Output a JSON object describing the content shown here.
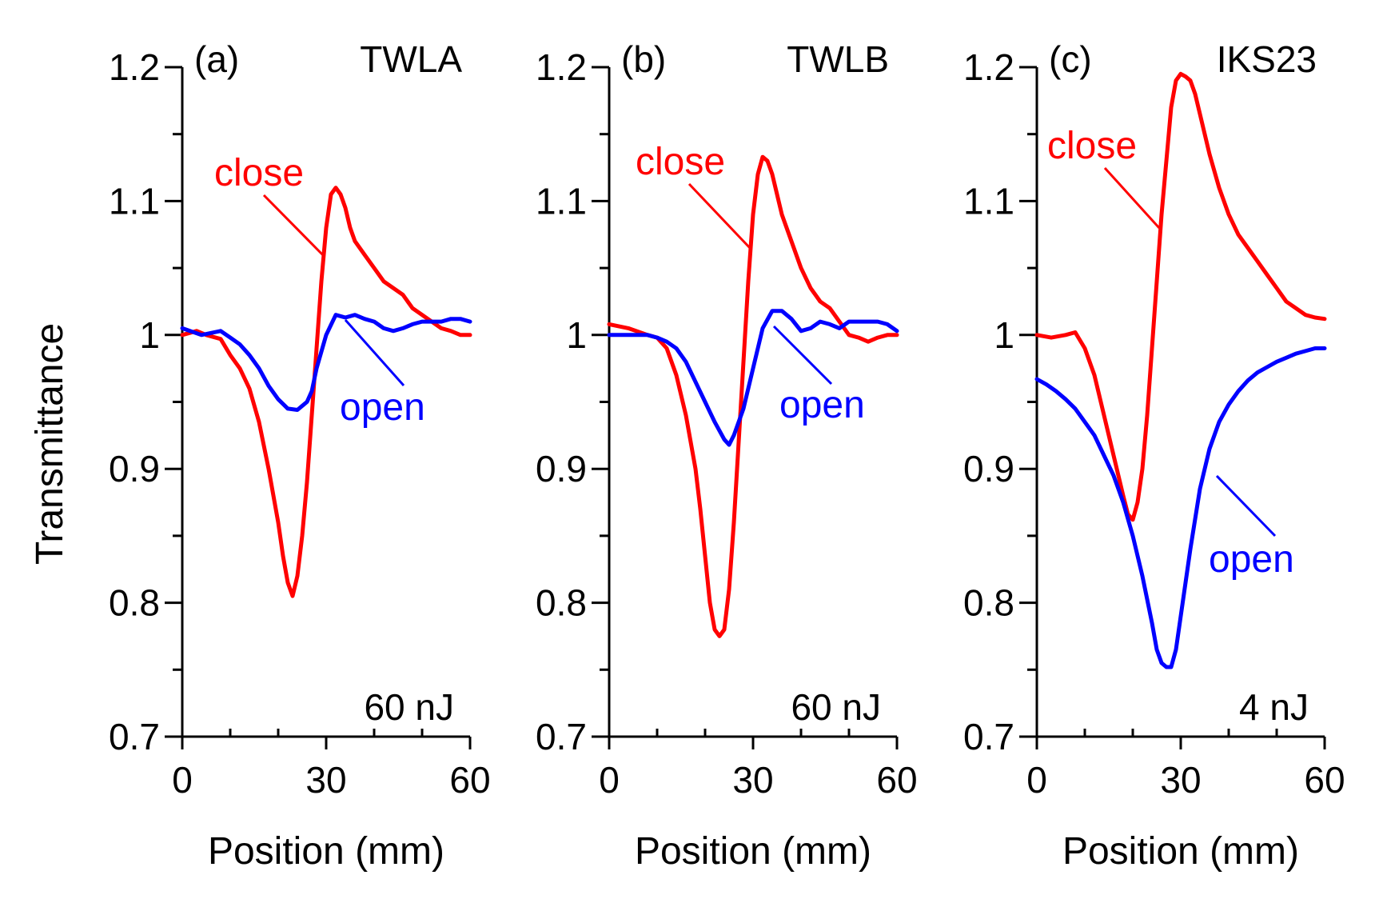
{
  "figure": {
    "ylabel": "Transmittance",
    "xlabel": "Position (mm)"
  },
  "chart_data": [
    {
      "type": "line",
      "panel": "(a)",
      "sample": "TWLA",
      "energy": "60 nJ",
      "xlabel": "Position (mm)",
      "ylabel": "Transmittance",
      "xlim": [
        0,
        60
      ],
      "ylim": [
        0.7,
        1.2
      ],
      "xticks": [
        0,
        30,
        60
      ],
      "yticks": [
        "0.7",
        "0.8",
        "0.9",
        "1",
        "1.1",
        "1.2"
      ],
      "series": [
        {
          "name": "close",
          "color": "#ff0000",
          "x": [
            0,
            3,
            5,
            8,
            10,
            12,
            14,
            16,
            18,
            20,
            21,
            22,
            23,
            24,
            25,
            26,
            27,
            28,
            29,
            30,
            31,
            32,
            33,
            34,
            35,
            36,
            38,
            40,
            42,
            44,
            46,
            48,
            50,
            52,
            54,
            56,
            58,
            60
          ],
          "y": [
            1.0,
            1.003,
            1.0,
            0.997,
            0.985,
            0.975,
            0.96,
            0.935,
            0.9,
            0.86,
            0.835,
            0.815,
            0.805,
            0.82,
            0.85,
            0.89,
            0.94,
            0.99,
            1.04,
            1.08,
            1.105,
            1.11,
            1.105,
            1.095,
            1.08,
            1.07,
            1.06,
            1.05,
            1.04,
            1.035,
            1.03,
            1.02,
            1.015,
            1.01,
            1.005,
            1.003,
            1.0,
            1.0
          ]
        },
        {
          "name": "open",
          "color": "#0000ff",
          "x": [
            0,
            4,
            8,
            10,
            12,
            14,
            16,
            18,
            20,
            22,
            24,
            26,
            27,
            28,
            30,
            32,
            34,
            36,
            38,
            40,
            42,
            44,
            46,
            48,
            50,
            52,
            54,
            56,
            58,
            60
          ],
          "y": [
            1.005,
            1.0,
            1.003,
            0.998,
            0.993,
            0.985,
            0.975,
            0.962,
            0.952,
            0.945,
            0.944,
            0.95,
            0.958,
            0.975,
            1.0,
            1.015,
            1.013,
            1.015,
            1.012,
            1.01,
            1.005,
            1.003,
            1.005,
            1.008,
            1.01,
            1.01,
            1.01,
            1.012,
            1.012,
            1.01
          ]
        }
      ]
    },
    {
      "type": "line",
      "panel": "(b)",
      "sample": "TWLB",
      "energy": "60 nJ",
      "xlabel": "Position (mm)",
      "ylabel": "Transmittance",
      "xlim": [
        0,
        60
      ],
      "ylim": [
        0.7,
        1.2
      ],
      "xticks": [
        0,
        30,
        60
      ],
      "yticks": [
        "0.7",
        "0.8",
        "0.9",
        "1",
        "1.1",
        "1.2"
      ],
      "series": [
        {
          "name": "close",
          "color": "#ff0000",
          "x": [
            0,
            4,
            8,
            10,
            12,
            14,
            16,
            18,
            19,
            20,
            21,
            22,
            23,
            24,
            25,
            26,
            27,
            28,
            29,
            30,
            31,
            32,
            33,
            34,
            35,
            36,
            38,
            40,
            42,
            44,
            46,
            48,
            50,
            52,
            54,
            56,
            58,
            60
          ],
          "y": [
            1.008,
            1.005,
            1.0,
            0.998,
            0.99,
            0.97,
            0.94,
            0.9,
            0.87,
            0.835,
            0.8,
            0.78,
            0.775,
            0.78,
            0.81,
            0.86,
            0.92,
            0.98,
            1.04,
            1.09,
            1.12,
            1.133,
            1.13,
            1.12,
            1.105,
            1.09,
            1.07,
            1.05,
            1.035,
            1.025,
            1.02,
            1.01,
            1.0,
            0.998,
            0.995,
            0.998,
            1.0,
            1.0
          ]
        },
        {
          "name": "open",
          "color": "#0000ff",
          "x": [
            0,
            4,
            8,
            10,
            12,
            14,
            16,
            18,
            20,
            22,
            24,
            25,
            26,
            28,
            30,
            32,
            34,
            36,
            38,
            40,
            42,
            44,
            46,
            48,
            50,
            52,
            54,
            56,
            58,
            60
          ],
          "y": [
            1.0,
            1.0,
            1.0,
            0.998,
            0.995,
            0.99,
            0.98,
            0.965,
            0.95,
            0.935,
            0.922,
            0.918,
            0.925,
            0.945,
            0.975,
            1.005,
            1.018,
            1.018,
            1.012,
            1.003,
            1.005,
            1.01,
            1.008,
            1.005,
            1.01,
            1.01,
            1.01,
            1.01,
            1.008,
            1.003
          ]
        }
      ]
    },
    {
      "type": "line",
      "panel": "(c)",
      "sample": "IKS23",
      "energy": "4 nJ",
      "xlabel": "Position (mm)",
      "ylabel": "Transmittance",
      "xlim": [
        0,
        60
      ],
      "ylim": [
        0.7,
        1.2
      ],
      "xticks": [
        0,
        30,
        60
      ],
      "yticks": [
        "0.7",
        "0.8",
        "0.9",
        "1",
        "1.1",
        "1.2"
      ],
      "series": [
        {
          "name": "close",
          "color": "#ff0000",
          "x": [
            0,
            3,
            6,
            8,
            10,
            12,
            14,
            16,
            18,
            19,
            20,
            21,
            22,
            23,
            24,
            25,
            26,
            27,
            28,
            29,
            30,
            31,
            32,
            33,
            34,
            35,
            36,
            38,
            40,
            42,
            44,
            46,
            48,
            50,
            52,
            54,
            56,
            58,
            60
          ],
          "y": [
            1.0,
            0.998,
            1.0,
            1.002,
            0.99,
            0.97,
            0.94,
            0.91,
            0.88,
            0.866,
            0.862,
            0.875,
            0.9,
            0.94,
            0.99,
            1.04,
            1.09,
            1.13,
            1.17,
            1.19,
            1.195,
            1.193,
            1.19,
            1.18,
            1.165,
            1.15,
            1.135,
            1.11,
            1.09,
            1.075,
            1.065,
            1.055,
            1.045,
            1.035,
            1.025,
            1.02,
            1.015,
            1.013,
            1.012
          ]
        },
        {
          "name": "open",
          "color": "#0000ff",
          "x": [
            0,
            2,
            4,
            6,
            8,
            10,
            12,
            14,
            16,
            18,
            20,
            22,
            24,
            25,
            26,
            27,
            28,
            29,
            30,
            32,
            34,
            36,
            38,
            40,
            42,
            44,
            46,
            48,
            50,
            52,
            54,
            56,
            58,
            60
          ],
          "y": [
            0.967,
            0.963,
            0.958,
            0.952,
            0.945,
            0.935,
            0.925,
            0.91,
            0.895,
            0.875,
            0.85,
            0.82,
            0.785,
            0.765,
            0.755,
            0.752,
            0.752,
            0.765,
            0.79,
            0.84,
            0.885,
            0.915,
            0.935,
            0.948,
            0.958,
            0.966,
            0.972,
            0.976,
            0.98,
            0.983,
            0.986,
            0.988,
            0.99,
            0.99
          ]
        }
      ]
    }
  ]
}
